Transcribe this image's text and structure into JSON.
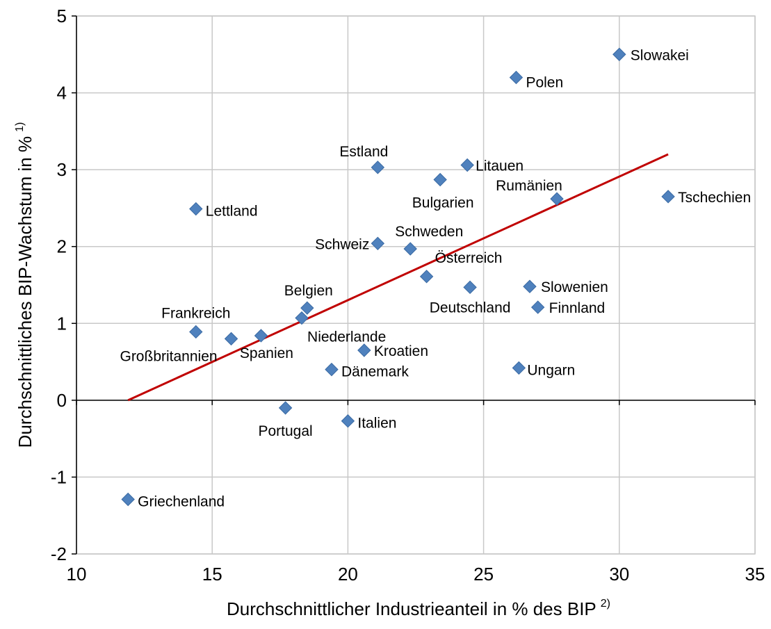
{
  "chart_data": {
    "type": "scatter",
    "xlabel": "Durchschnittlicher  Industrieanteil  in % des BIP",
    "xlabel_sup": "2)",
    "ylabel": "Durchschnittliches  BIP-Wachstum  in %",
    "ylabel_sup": "1)",
    "xlim": [
      10,
      35
    ],
    "ylim": [
      -2,
      5
    ],
    "xticks": [
      10,
      15,
      20,
      25,
      30,
      35
    ],
    "yticks": [
      -2,
      -1,
      0,
      1,
      2,
      3,
      4,
      5
    ],
    "xtick_labels": [
      "10",
      "15",
      "20",
      "25",
      "30",
      "35"
    ],
    "ytick_labels": [
      "-2",
      "-1",
      "0",
      "1",
      "2",
      "3",
      "4",
      "5"
    ],
    "grid": true,
    "marker_color": "#4f81bd",
    "trendline_color": "#c00000",
    "trendline": {
      "x": [
        11.9,
        31.8
      ],
      "y": [
        0.0,
        3.2
      ]
    },
    "points": [
      {
        "label": "Slowakei",
        "x": 30.0,
        "y": 4.5
      },
      {
        "label": "Polen",
        "x": 26.2,
        "y": 4.2
      },
      {
        "label": "Estland",
        "x": 21.1,
        "y": 3.03
      },
      {
        "label": "Litauen",
        "x": 24.4,
        "y": 3.06
      },
      {
        "label": "Bulgarien",
        "x": 23.4,
        "y": 2.87
      },
      {
        "label": "Rumänien",
        "x": 27.7,
        "y": 2.62
      },
      {
        "label": "Tschechien",
        "x": 31.8,
        "y": 2.65
      },
      {
        "label": "Lettland",
        "x": 14.4,
        "y": 2.49
      },
      {
        "label": "Schweiz",
        "x": 21.1,
        "y": 2.04
      },
      {
        "label": "Schweden",
        "x": 22.3,
        "y": 1.97
      },
      {
        "label": "Österreich",
        "x": 22.9,
        "y": 1.61
      },
      {
        "label": "Deutschland",
        "x": 24.5,
        "y": 1.47
      },
      {
        "label": "Slowenien",
        "x": 26.7,
        "y": 1.48
      },
      {
        "label": "Finnland",
        "x": 27.0,
        "y": 1.21
      },
      {
        "label": "Belgien",
        "x": 18.5,
        "y": 1.2
      },
      {
        "label": "Niederlande",
        "x": 18.3,
        "y": 1.07
      },
      {
        "label": "Frankreich",
        "x": 14.4,
        "y": 0.89
      },
      {
        "label": "Großbritannien",
        "x": 15.7,
        "y": 0.8
      },
      {
        "label": "Spanien",
        "x": 16.8,
        "y": 0.84
      },
      {
        "label": "Kroatien",
        "x": 20.6,
        "y": 0.65
      },
      {
        "label": "Dänemark",
        "x": 19.4,
        "y": 0.4
      },
      {
        "label": "Ungarn",
        "x": 26.3,
        "y": 0.42
      },
      {
        "label": "Portugal",
        "x": 17.7,
        "y": -0.1
      },
      {
        "label": "Italien",
        "x": 20.0,
        "y": -0.27
      },
      {
        "label": "Griechenland",
        "x": 11.9,
        "y": -1.29
      }
    ]
  }
}
